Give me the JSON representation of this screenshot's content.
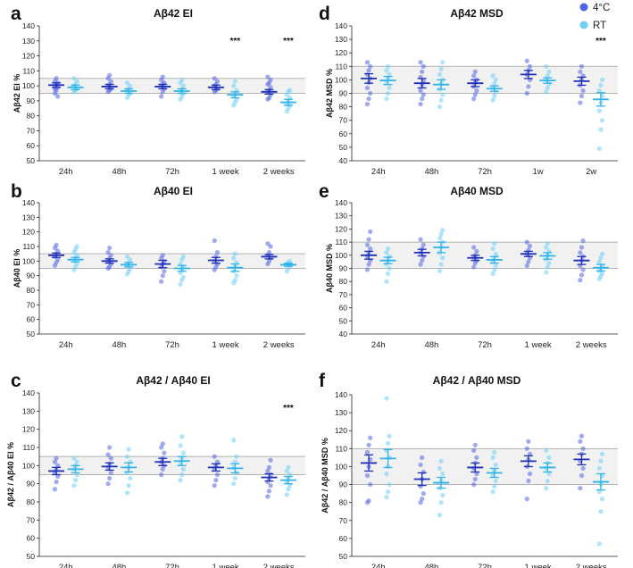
{
  "legend": [
    {
      "label": "4°C",
      "color": "#5264e6"
    },
    {
      "label": "RT",
      "color": "#6ed0f5"
    }
  ],
  "colors": {
    "dark_mean": "#1e2fb8",
    "light_mean": "#2fb3ea",
    "band": "#f1f1f1",
    "band_line": "#b3b3b3"
  },
  "chart_data": [
    {
      "type": "scatter",
      "letter": "a",
      "title": "Aβ42 EI",
      "ylabel": "Aβ42 EI %",
      "ylim": [
        50,
        140
      ],
      "yticks": [
        50,
        60,
        70,
        80,
        90,
        100,
        110,
        120,
        130,
        140
      ],
      "band": [
        95,
        105
      ],
      "categories": [
        "24h",
        "48h",
        "72h",
        "1 week",
        "2 weeks"
      ],
      "significance": [
        "",
        "",
        "",
        "***",
        "***"
      ],
      "series": [
        {
          "name": "4°C",
          "means": [
            100.5,
            99.5,
            99.5,
            99,
            96
          ],
          "sems": [
            1.5,
            1.5,
            1.5,
            1.5,
            1.5
          ],
          "points": [
            [
              95,
              97,
              99,
              100,
              101,
              102,
              103,
              105,
              93,
              98
            ],
            [
              96,
              97,
              98,
              100,
              101,
              103,
              105,
              107
            ],
            [
              93,
              96,
              98,
              100,
              101,
              102,
              104,
              106
            ],
            [
              96,
              97,
              98,
              100,
              101,
              103,
              105
            ],
            [
              91,
              92,
              94,
              96,
              97,
              99,
              101,
              102,
              104,
              106
            ]
          ]
        },
        {
          "name": "RT",
          "means": [
            99,
            96.5,
            96.5,
            94,
            89
          ],
          "sems": [
            1.5,
            1.5,
            1.5,
            2,
            2
          ],
          "points": [
            [
              96,
              97,
              98,
              100,
              101,
              103,
              105
            ],
            [
              92,
              94,
              95,
              97,
              98,
              100,
              102
            ],
            [
              91,
              93,
              95,
              96,
              98,
              100,
              102,
              104
            ],
            [
              87,
              89,
              91,
              93,
              95,
              97,
              100,
              103
            ],
            [
              83,
              85,
              87,
              88,
              90,
              92,
              94,
              96,
              97
            ]
          ]
        }
      ]
    },
    {
      "type": "scatter",
      "letter": "b",
      "title": "Aβ40 EI",
      "ylabel": "Aβ40 EI %",
      "ylim": [
        50,
        140
      ],
      "yticks": [
        50,
        60,
        70,
        80,
        90,
        100,
        110,
        120,
        130,
        140
      ],
      "band": [
        95,
        105
      ],
      "categories": [
        "24h",
        "48h",
        "72h",
        "1 week",
        "2 weeks"
      ],
      "significance": [
        "",
        "",
        "",
        "",
        ""
      ],
      "series": [
        {
          "name": "4°C",
          "means": [
            104,
            100,
            98,
            100.5,
            103
          ],
          "sems": [
            1.5,
            1.5,
            2.5,
            2,
            1.5
          ],
          "points": [
            [
              97,
              99,
              101,
              103,
              105,
              107,
              109,
              111
            ],
            [
              95,
              96,
              98,
              100,
              102,
              104,
              106,
              109
            ],
            [
              86,
              90,
              93,
              96,
              98,
              100,
              102,
              104
            ],
            [
              94,
              96,
              98,
              100,
              103,
              106,
              114
            ],
            [
              98,
              100,
              102,
              104,
              106,
              110,
              112
            ]
          ]
        },
        {
          "name": "RT",
          "means": [
            101,
            97.5,
            95,
            95.5,
            97.5
          ],
          "sems": [
            1.5,
            1.5,
            2,
            2.5,
            1
          ],
          "points": [
            [
              94,
              96,
              98,
              100,
              102,
              104,
              106,
              108,
              110
            ],
            [
              91,
              93,
              95,
              97,
              99,
              101,
              103
            ],
            [
              84,
              87,
              89,
              92,
              94,
              96,
              98,
              101,
              103
            ],
            [
              85,
              87,
              90,
              93,
              96,
              99,
              102,
              105
            ],
            [
              93,
              95,
              97,
              98,
              99,
              100
            ]
          ]
        }
      ]
    },
    {
      "type": "scatter",
      "letter": "c",
      "title": "Aβ42 / Aβ40 EI",
      "ylabel": "Aβ42 / Aβ40 EI %",
      "ylim": [
        50,
        140
      ],
      "yticks": [
        50,
        60,
        70,
        80,
        90,
        100,
        110,
        120,
        130,
        140
      ],
      "band": [
        95,
        105
      ],
      "categories": [
        "24h",
        "48h",
        "72h",
        "1 week",
        "2 weeks"
      ],
      "significance": [
        "",
        "",
        "",
        "",
        "***"
      ],
      "series": [
        {
          "name": "4°C",
          "means": [
            97,
            99.5,
            102,
            99,
            93.5
          ],
          "sems": [
            2,
            2,
            2,
            2,
            2
          ],
          "points": [
            [
              87,
              91,
              94,
              96,
              98,
              100,
              102,
              104
            ],
            [
              90,
              93,
              96,
              99,
              101,
              104,
              106,
              110
            ],
            [
              95,
              98,
              100,
              102,
              104,
              107,
              110,
              112
            ],
            [
              89,
              92,
              95,
              98,
              100,
              102,
              105
            ],
            [
              83,
              86,
              89,
              91,
              93,
              95,
              97,
              99,
              103
            ]
          ]
        },
        {
          "name": "RT",
          "means": [
            98,
            99,
            102.5,
            98.5,
            92
          ],
          "sems": [
            2,
            2.5,
            2.5,
            2.5,
            2
          ],
          "points": [
            [
              89,
              92,
              95,
              98,
              100,
              102,
              104
            ],
            [
              85,
              89,
              93,
              96,
              99,
              102,
              105,
              109
            ],
            [
              92,
              95,
              98,
              101,
              104,
              107,
              111,
              116
            ],
            [
              90,
              93,
              96,
              99,
              102,
              105,
              114
            ],
            [
              84,
              87,
              89,
              91,
              93,
              95,
              97,
              99
            ]
          ]
        }
      ]
    },
    {
      "type": "scatter",
      "letter": "d",
      "title": "Aβ42 MSD",
      "ylabel": "Aβ42 MSD %",
      "ylim": [
        40,
        140
      ],
      "yticks": [
        40,
        50,
        60,
        70,
        80,
        90,
        100,
        110,
        120,
        130,
        140
      ],
      "band": [
        90,
        110
      ],
      "categories": [
        "24h",
        "48h",
        "72h",
        "1w",
        "2w"
      ],
      "significance": [
        "",
        "",
        "",
        "",
        "***"
      ],
      "series": [
        {
          "name": "4°C",
          "means": [
            101,
            97.5,
            97.5,
            104,
            99
          ],
          "sems": [
            3.5,
            3.5,
            2.5,
            3,
            3
          ],
          "points": [
            [
              82,
              86,
              90,
              94,
              98,
              101,
              104,
              107,
              110,
              113
            ],
            [
              82,
              86,
              89,
              92,
              96,
              99,
              102,
              106,
              110,
              113
            ],
            [
              86,
              89,
              92,
              95,
              98,
              100,
              103,
              106
            ],
            [
              90,
              95,
              100,
              104,
              107,
              110,
              114
            ],
            [
              83,
              88,
              92,
              96,
              100,
              103,
              106,
              110
            ]
          ]
        },
        {
          "name": "RT",
          "means": [
            99.5,
            96.5,
            93.5,
            99.5,
            85.5
          ],
          "sems": [
            3,
            3.5,
            2,
            2,
            5
          ],
          "points": [
            [
              86,
              90,
              94,
              98,
              101,
              104,
              107,
              110
            ],
            [
              80,
              85,
              89,
              93,
              97,
              100,
              104,
              108,
              113
            ],
            [
              85,
              88,
              91,
              94,
              97,
              100,
              103
            ],
            [
              91,
              94,
              97,
              100,
              103,
              106,
              110
            ],
            [
              49,
              63,
              70,
              77,
              83,
              88,
              92,
              96,
              100
            ]
          ]
        }
      ]
    },
    {
      "type": "scatter",
      "letter": "e",
      "title": "Aβ40 MSD",
      "ylabel": "Aβ40 MSD %",
      "ylim": [
        40,
        140
      ],
      "yticks": [
        40,
        50,
        60,
        70,
        80,
        90,
        100,
        110,
        120,
        130,
        140
      ],
      "band": [
        90,
        110
      ],
      "categories": [
        "24h",
        "48h",
        "72h",
        "1 week",
        "2 weeks"
      ],
      "significance": [
        "",
        "",
        "",
        "",
        ""
      ],
      "series": [
        {
          "name": "4°C",
          "means": [
            100,
            102,
            98,
            101,
            96
          ],
          "sems": [
            3,
            2.5,
            2,
            2,
            3
          ],
          "points": [
            [
              89,
              93,
              96,
              99,
              102,
              105,
              108,
              112,
              118
            ],
            [
              93,
              96,
              99,
              102,
              105,
              108,
              112
            ],
            [
              91,
              94,
              96,
              98,
              100,
              103,
              106
            ],
            [
              92,
              95,
              98,
              101,
              104,
              107,
              110
            ],
            [
              81,
              85,
              89,
              92,
              96,
              99,
              102,
              106,
              111
            ]
          ]
        },
        {
          "name": "RT",
          "means": [
            96,
            106,
            96.5,
            99.5,
            90.5
          ],
          "sems": [
            2.5,
            4,
            2.5,
            2.5,
            2.5
          ],
          "points": [
            [
              80,
              86,
              90,
              93,
              96,
              99,
              102,
              105
            ],
            [
              88,
              93,
              98,
              102,
              106,
              110,
              113,
              116,
              119
            ],
            [
              86,
              89,
              92,
              95,
              98,
              101,
              105,
              109
            ],
            [
              87,
              91,
              94,
              97,
              100,
              103,
              106,
              109
            ],
            [
              82,
              84,
              86,
              88,
              90,
              92,
              95,
              98,
              101
            ]
          ]
        }
      ]
    },
    {
      "type": "scatter",
      "letter": "f",
      "title": "Aβ42 / Aβ40  MSD",
      "ylabel": "Aβ42 / Aβ40 MSD %",
      "ylim": [
        50,
        140
      ],
      "yticks": [
        50,
        60,
        70,
        80,
        90,
        100,
        110,
        120,
        130,
        140
      ],
      "band": [
        90,
        110
      ],
      "categories": [
        "24h",
        "48h",
        "72h",
        "1 week",
        "2 weeks"
      ],
      "significance": [
        "",
        "",
        "",
        "",
        ""
      ],
      "series": [
        {
          "name": "4°C",
          "means": [
            102,
            93,
            99.5,
            103,
            104
          ],
          "sems": [
            4.5,
            3.5,
            2.5,
            3,
            3
          ],
          "points": [
            [
              80,
              81,
              90,
              95,
              100,
              104,
              108,
              112,
              116
            ],
            [
              80,
              82,
              85,
              89,
              93,
              97,
              101,
              105
            ],
            [
              90,
              93,
              96,
              99,
              102,
              105,
              109,
              112
            ],
            [
              82,
              92,
              96,
              100,
              104,
              107,
              110,
              114
            ],
            [
              88,
              95,
              99,
              103,
              107,
              110,
              114,
              117
            ]
          ]
        },
        {
          "name": "RT",
          "means": [
            104.5,
            91,
            96.5,
            99.5,
            91.5
          ],
          "sems": [
            5,
            3,
            2.5,
            2.5,
            4.5
          ],
          "points": [
            [
              83,
              86,
              90,
              96,
              100,
              105,
              109,
              113,
              117,
              138
            ],
            [
              73,
              80,
              84,
              88,
              92,
              96,
              99,
              103
            ],
            [
              86,
              89,
              92,
              95,
              98,
              101,
              105,
              108
            ],
            [
              88,
              92,
              96,
              99,
              102,
              105,
              109
            ],
            [
              57,
              75,
              82,
              86,
              90,
              95,
              99,
              103,
              107
            ]
          ]
        }
      ]
    }
  ]
}
